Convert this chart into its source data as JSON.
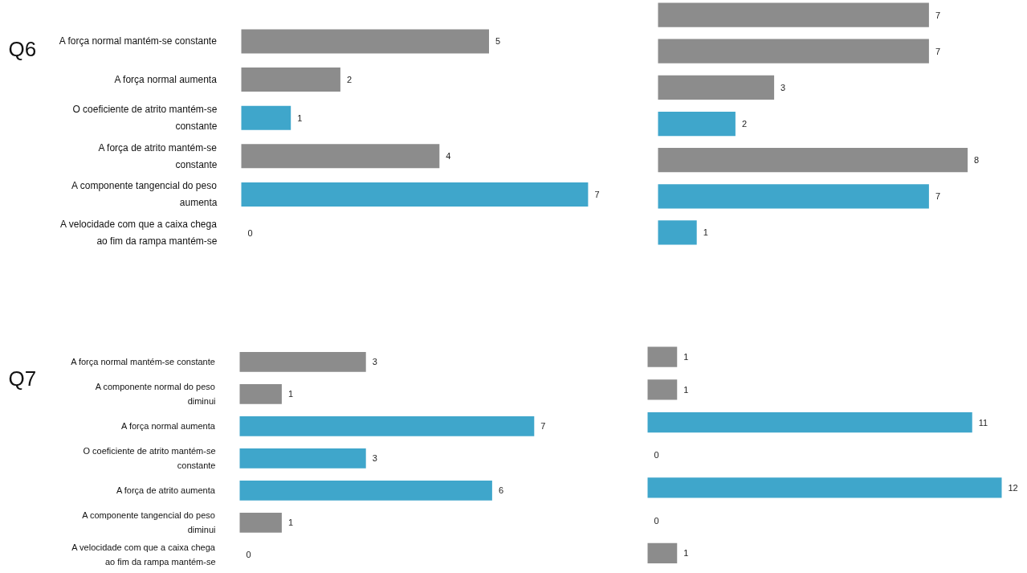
{
  "chart_data": [
    {
      "type": "bar",
      "orientation": "horizontal",
      "title": "Q6",
      "data_labels": true,
      "categories": [
        "A força normal mantém-se constante",
        "A força normal aumenta",
        "O coeficiente de atrito mantém-se constante",
        "A força de atrito mantém-se constante",
        "A componente tangencial do peso aumenta",
        "A velocidade com que a caixa chega ao fim da rampa mantém-se"
      ],
      "values": [
        5,
        2,
        1,
        4,
        7,
        0
      ],
      "colors": [
        "#8c8c8c",
        "#8c8c8c",
        "#3fa6cb",
        "#8c8c8c",
        "#3fa6cb",
        "#3fa6cb"
      ]
    },
    {
      "type": "bar",
      "orientation": "horizontal",
      "data_labels": true,
      "categories": [
        null,
        null,
        null,
        null,
        null,
        null,
        null
      ],
      "values": [
        7,
        7,
        3,
        2,
        8,
        7,
        1
      ],
      "colors": [
        "#8c8c8c",
        "#8c8c8c",
        "#8c8c8c",
        "#3fa6cb",
        "#8c8c8c",
        "#3fa6cb",
        "#3fa6cb"
      ]
    },
    {
      "type": "bar",
      "orientation": "horizontal",
      "title": "Q7",
      "data_labels": true,
      "categories": [
        "A força normal mantém-se constante",
        "A componente normal do peso diminui",
        "A força normal aumenta",
        "O coeficiente de atrito mantém-se constante",
        "A força de atrito aumenta",
        "A componente tangencial do peso diminui",
        "A velocidade com que a caixa chega ao fim da rampa mantém-se"
      ],
      "values": [
        3,
        1,
        7,
        3,
        6,
        1,
        0
      ],
      "colors": [
        "#8c8c8c",
        "#8c8c8c",
        "#3fa6cb",
        "#3fa6cb",
        "#3fa6cb",
        "#8c8c8c",
        "#8c8c8c"
      ]
    },
    {
      "type": "bar",
      "orientation": "horizontal",
      "data_labels": true,
      "categories": [
        null,
        null,
        null,
        null,
        null,
        null,
        null
      ],
      "values": [
        1,
        1,
        11,
        0,
        12,
        0,
        1
      ],
      "colors": [
        "#8c8c8c",
        "#8c8c8c",
        "#3fa6cb",
        "#3fa6cb",
        "#3fa6cb",
        "#8c8c8c",
        "#8c8c8c"
      ]
    }
  ]
}
